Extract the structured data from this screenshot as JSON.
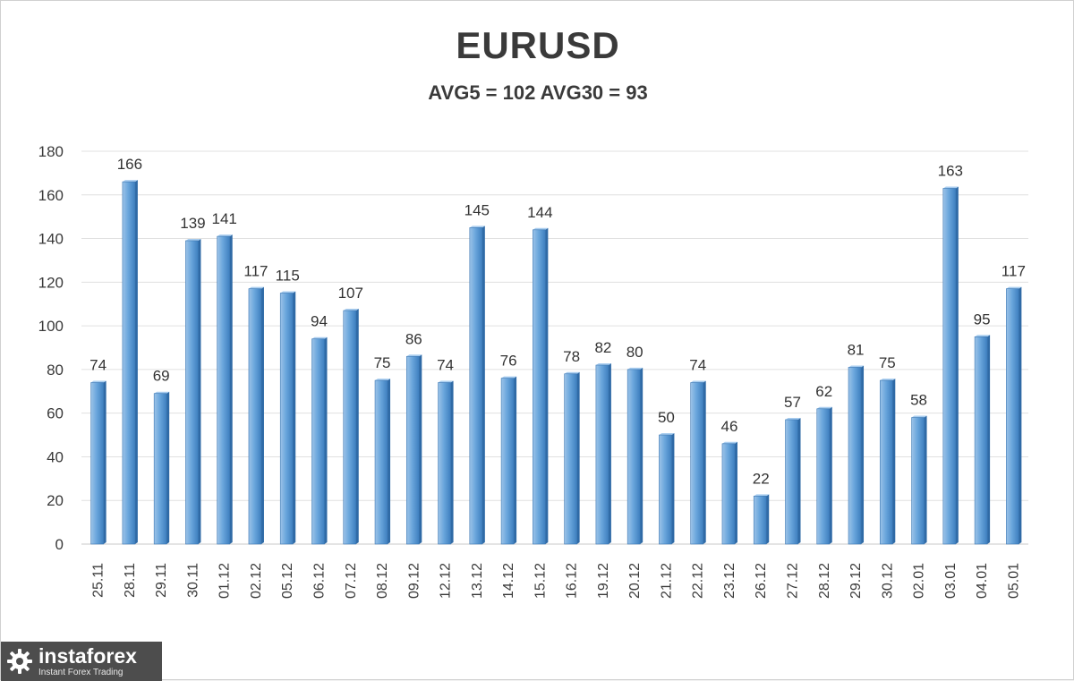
{
  "chart_data": {
    "type": "bar",
    "title": "EURUSD",
    "subtitle": "AVG5 = 102 AVG30 = 93",
    "categories": [
      "25.11",
      "28.11",
      "29.11",
      "30.11",
      "01.12",
      "02.12",
      "05.12",
      "06.12",
      "07.12",
      "08.12",
      "09.12",
      "12.12",
      "13.12",
      "14.12",
      "15.12",
      "16.12",
      "19.12",
      "20.12",
      "21.12",
      "22.12",
      "23.12",
      "26.12",
      "27.12",
      "28.12",
      "29.12",
      "30.12",
      "02.01",
      "03.01",
      "04.01",
      "05.01"
    ],
    "values": [
      74,
      166,
      69,
      139,
      141,
      117,
      115,
      94,
      107,
      75,
      86,
      74,
      145,
      76,
      144,
      78,
      82,
      80,
      50,
      74,
      46,
      22,
      57,
      62,
      81,
      75,
      58,
      163,
      95,
      117
    ],
    "y_ticks": [
      "0",
      "20",
      "40",
      "60",
      "80",
      "100",
      "120",
      "140",
      "160",
      "180"
    ],
    "ylim": [
      0,
      180
    ],
    "grid": true,
    "legend": "none",
    "bar_color": "#5b9bd5",
    "data_labels": true
  },
  "logo": {
    "name": "instaforex",
    "tagline": "Instant Forex Trading",
    "icon": "gear-icon"
  }
}
